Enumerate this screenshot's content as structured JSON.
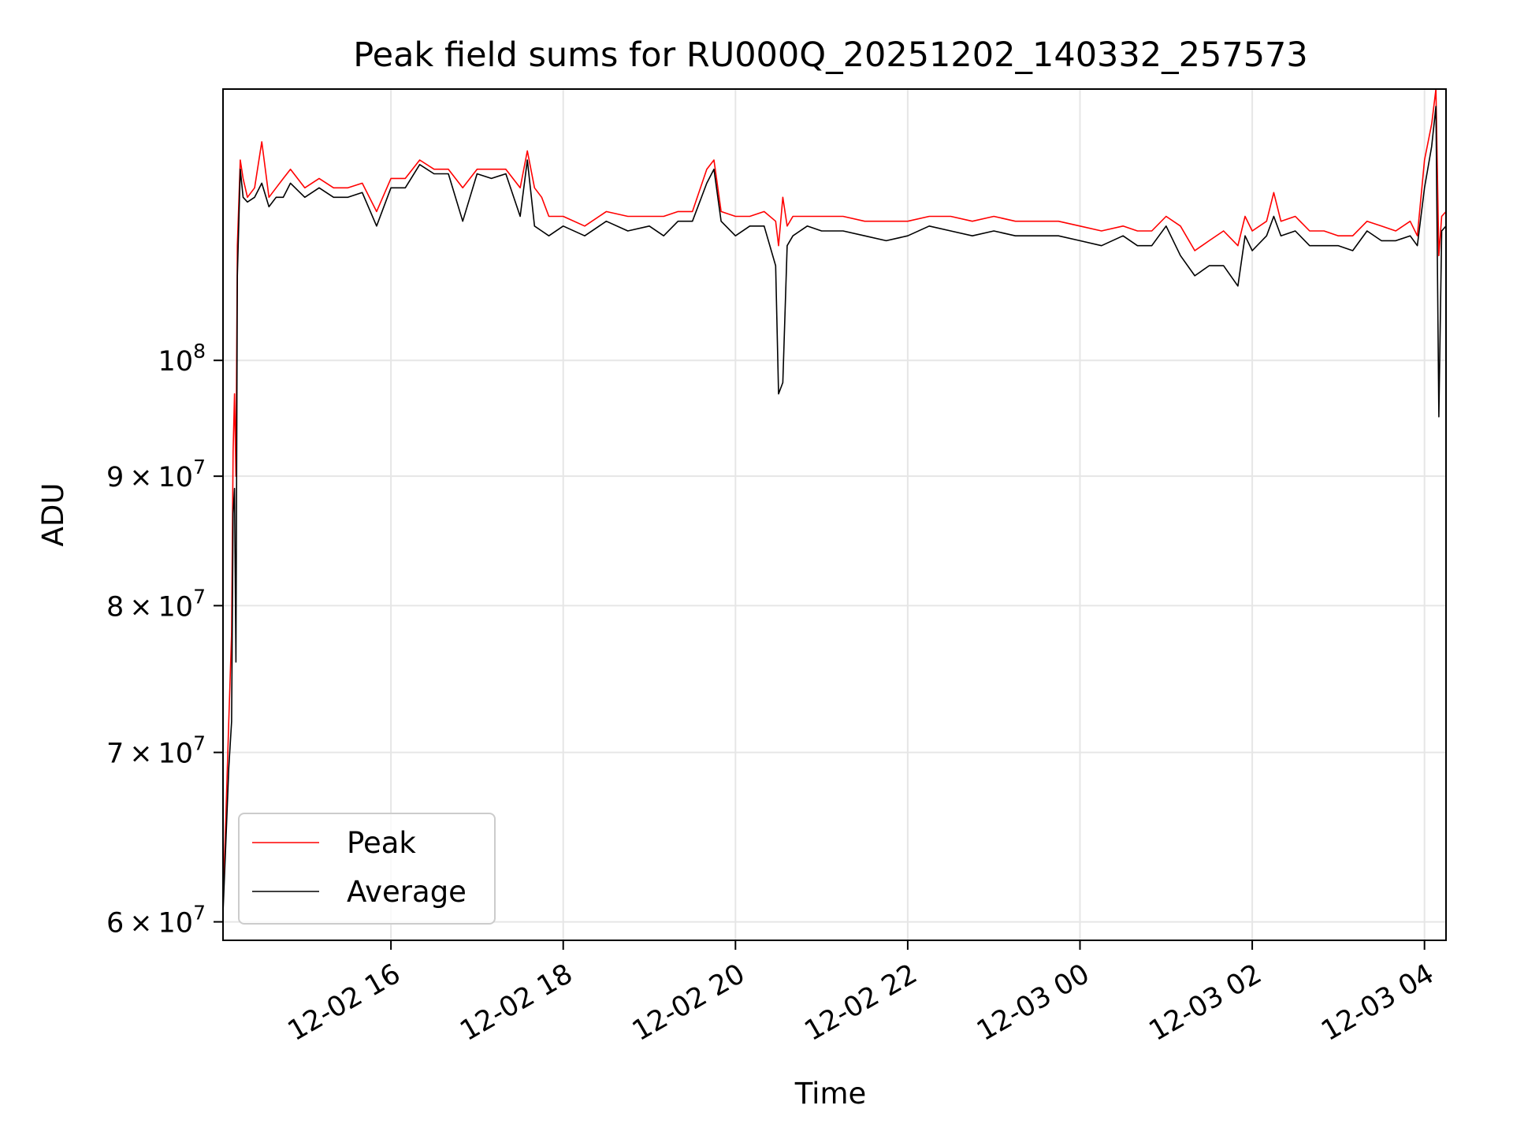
{
  "chart_data": {
    "type": "line",
    "title": "Peak field sums for RU000Q_20251202_140332_257573",
    "xlabel": "Time",
    "ylabel": "ADU",
    "yscale": "log",
    "grid": true,
    "legend_position": "lower-left",
    "xlim": [
      "2025-12-02 14:03",
      "2025-12-03 04:15"
    ],
    "ylim": [
      59000000,
      128000000
    ],
    "x_ticks": [
      {
        "value": "2025-12-02 16:00",
        "label": "12-02 16"
      },
      {
        "value": "2025-12-02 18:00",
        "label": "12-02 18"
      },
      {
        "value": "2025-12-02 20:00",
        "label": "12-02 20"
      },
      {
        "value": "2025-12-02 22:00",
        "label": "12-02 22"
      },
      {
        "value": "2025-12-03 00:00",
        "label": "12-03 00"
      },
      {
        "value": "2025-12-03 02:00",
        "label": "12-03 02"
      },
      {
        "value": "2025-12-03 04:00",
        "label": "12-03 04"
      }
    ],
    "y_ticks": [
      {
        "value": 60000000,
        "mantissa": "6",
        "times": "×",
        "base": "10",
        "exp": "7"
      },
      {
        "value": 70000000,
        "mantissa": "7",
        "times": "×",
        "base": "10",
        "exp": "7"
      },
      {
        "value": 80000000,
        "mantissa": "8",
        "times": "×",
        "base": "10",
        "exp": "7"
      },
      {
        "value": 90000000,
        "mantissa": "9",
        "times": "×",
        "base": "10",
        "exp": "7"
      },
      {
        "value": 100000000,
        "mantissa": "",
        "times": "",
        "base": "10",
        "exp": "8"
      }
    ],
    "series": [
      {
        "name": "Peak",
        "color": "#ff0000",
        "x": [
          "2025-12-02 14:03",
          "2025-12-02 14:05",
          "2025-12-02 14:07",
          "2025-12-02 14:09",
          "2025-12-02 14:10",
          "2025-12-02 14:11",
          "2025-12-02 14:12",
          "2025-12-02 14:13",
          "2025-12-02 14:15",
          "2025-12-02 14:17",
          "2025-12-02 14:20",
          "2025-12-02 14:25",
          "2025-12-02 14:30",
          "2025-12-02 14:35",
          "2025-12-02 14:40",
          "2025-12-02 14:45",
          "2025-12-02 14:50",
          "2025-12-02 15:00",
          "2025-12-02 15:10",
          "2025-12-02 15:20",
          "2025-12-02 15:30",
          "2025-12-02 15:40",
          "2025-12-02 15:50",
          "2025-12-02 16:00",
          "2025-12-02 16:10",
          "2025-12-02 16:20",
          "2025-12-02 16:30",
          "2025-12-02 16:40",
          "2025-12-02 16:50",
          "2025-12-02 17:00",
          "2025-12-02 17:10",
          "2025-12-02 17:20",
          "2025-12-02 17:30",
          "2025-12-02 17:35",
          "2025-12-02 17:40",
          "2025-12-02 17:45",
          "2025-12-02 17:50",
          "2025-12-02 18:00",
          "2025-12-02 18:15",
          "2025-12-02 18:30",
          "2025-12-02 18:45",
          "2025-12-02 19:00",
          "2025-12-02 19:10",
          "2025-12-02 19:20",
          "2025-12-02 19:30",
          "2025-12-02 19:40",
          "2025-12-02 19:45",
          "2025-12-02 19:50",
          "2025-12-02 20:00",
          "2025-12-02 20:10",
          "2025-12-02 20:20",
          "2025-12-02 20:28",
          "2025-12-02 20:30",
          "2025-12-02 20:33",
          "2025-12-02 20:36",
          "2025-12-02 20:40",
          "2025-12-02 20:50",
          "2025-12-02 21:00",
          "2025-12-02 21:15",
          "2025-12-02 21:30",
          "2025-12-02 21:45",
          "2025-12-02 22:00",
          "2025-12-02 22:15",
          "2025-12-02 22:30",
          "2025-12-02 22:45",
          "2025-12-02 23:00",
          "2025-12-02 23:15",
          "2025-12-02 23:30",
          "2025-12-02 23:45",
          "2025-12-03 00:00",
          "2025-12-03 00:15",
          "2025-12-03 00:30",
          "2025-12-03 00:40",
          "2025-12-03 00:50",
          "2025-12-03 01:00",
          "2025-12-03 01:10",
          "2025-12-03 01:20",
          "2025-12-03 01:30",
          "2025-12-03 01:40",
          "2025-12-03 01:50",
          "2025-12-03 01:55",
          "2025-12-03 02:00",
          "2025-12-03 02:10",
          "2025-12-03 02:15",
          "2025-12-03 02:20",
          "2025-12-03 02:30",
          "2025-12-03 02:40",
          "2025-12-03 02:50",
          "2025-12-03 03:00",
          "2025-12-03 03:10",
          "2025-12-03 03:20",
          "2025-12-03 03:30",
          "2025-12-03 03:40",
          "2025-12-03 03:50",
          "2025-12-03 03:55",
          "2025-12-03 04:00",
          "2025-12-03 04:05",
          "2025-12-03 04:08",
          "2025-12-03 04:10",
          "2025-12-03 04:12",
          "2025-12-03 04:15"
        ],
        "y": [
          61000000,
          66000000,
          72000000,
          78000000,
          92000000,
          97000000,
          90000000,
          111000000,
          120000000,
          118000000,
          116000000,
          117000000,
          122000000,
          116000000,
          117000000,
          118000000,
          119000000,
          117000000,
          118000000,
          117000000,
          117000000,
          117500000,
          114500000,
          118000000,
          118000000,
          120000000,
          119000000,
          119000000,
          117000000,
          119000000,
          119000000,
          119000000,
          117000000,
          121000000,
          117000000,
          116000000,
          114000000,
          114000000,
          113000000,
          114500000,
          114000000,
          114000000,
          114000000,
          114500000,
          114500000,
          119000000,
          120000000,
          114500000,
          114000000,
          114000000,
          114500000,
          113500000,
          111000000,
          116000000,
          113000000,
          114000000,
          114000000,
          114000000,
          114000000,
          113500000,
          113500000,
          113500000,
          114000000,
          114000000,
          113500000,
          114000000,
          113500000,
          113500000,
          113500000,
          113000000,
          112500000,
          113000000,
          112500000,
          112500000,
          114000000,
          113000000,
          110500000,
          111500000,
          112500000,
          111000000,
          114000000,
          112500000,
          113500000,
          116500000,
          113500000,
          114000000,
          112500000,
          112500000,
          112000000,
          112000000,
          113500000,
          113000000,
          112500000,
          113500000,
          112000000,
          120000000,
          124000000,
          128000000,
          110000000,
          114000000,
          114500000
        ]
      },
      {
        "name": "Average",
        "color": "#000000",
        "x": [
          "2025-12-02 14:03",
          "2025-12-02 14:05",
          "2025-12-02 14:07",
          "2025-12-02 14:09",
          "2025-12-02 14:10",
          "2025-12-02 14:11",
          "2025-12-02 14:12",
          "2025-12-02 14:13",
          "2025-12-02 14:15",
          "2025-12-02 14:17",
          "2025-12-02 14:20",
          "2025-12-02 14:25",
          "2025-12-02 14:30",
          "2025-12-02 14:35",
          "2025-12-02 14:40",
          "2025-12-02 14:45",
          "2025-12-02 14:50",
          "2025-12-02 15:00",
          "2025-12-02 15:10",
          "2025-12-02 15:20",
          "2025-12-02 15:30",
          "2025-12-02 15:40",
          "2025-12-02 15:50",
          "2025-12-02 16:00",
          "2025-12-02 16:10",
          "2025-12-02 16:20",
          "2025-12-02 16:30",
          "2025-12-02 16:40",
          "2025-12-02 16:50",
          "2025-12-02 17:00",
          "2025-12-02 17:10",
          "2025-12-02 17:20",
          "2025-12-02 17:30",
          "2025-12-02 17:35",
          "2025-12-02 17:40",
          "2025-12-02 17:45",
          "2025-12-02 17:50",
          "2025-12-02 18:00",
          "2025-12-02 18:15",
          "2025-12-02 18:30",
          "2025-12-02 18:45",
          "2025-12-02 19:00",
          "2025-12-02 19:10",
          "2025-12-02 19:20",
          "2025-12-02 19:30",
          "2025-12-02 19:40",
          "2025-12-02 19:45",
          "2025-12-02 19:50",
          "2025-12-02 20:00",
          "2025-12-02 20:10",
          "2025-12-02 20:20",
          "2025-12-02 20:28",
          "2025-12-02 20:30",
          "2025-12-02 20:33",
          "2025-12-02 20:36",
          "2025-12-02 20:40",
          "2025-12-02 20:50",
          "2025-12-02 21:00",
          "2025-12-02 21:15",
          "2025-12-02 21:30",
          "2025-12-02 21:45",
          "2025-12-02 22:00",
          "2025-12-02 22:15",
          "2025-12-02 22:30",
          "2025-12-02 22:45",
          "2025-12-02 23:00",
          "2025-12-02 23:15",
          "2025-12-02 23:30",
          "2025-12-02 23:45",
          "2025-12-03 00:00",
          "2025-12-03 00:15",
          "2025-12-03 00:30",
          "2025-12-03 00:40",
          "2025-12-03 00:50",
          "2025-12-03 01:00",
          "2025-12-03 01:10",
          "2025-12-03 01:20",
          "2025-12-03 01:30",
          "2025-12-03 01:40",
          "2025-12-03 01:50",
          "2025-12-03 01:55",
          "2025-12-03 02:00",
          "2025-12-03 02:10",
          "2025-12-03 02:15",
          "2025-12-03 02:20",
          "2025-12-03 02:30",
          "2025-12-03 02:40",
          "2025-12-03 02:50",
          "2025-12-03 03:00",
          "2025-12-03 03:10",
          "2025-12-03 03:20",
          "2025-12-03 03:30",
          "2025-12-03 03:40",
          "2025-12-03 03:50",
          "2025-12-03 03:55",
          "2025-12-03 04:00",
          "2025-12-03 04:05",
          "2025-12-03 04:08",
          "2025-12-03 04:10",
          "2025-12-03 04:12",
          "2025-12-03 04:15"
        ],
        "y": [
          60500000,
          64500000,
          69000000,
          72000000,
          87000000,
          89000000,
          76000000,
          108000000,
          119000000,
          116000000,
          115500000,
          116000000,
          117500000,
          115000000,
          116000000,
          116000000,
          117500000,
          116000000,
          117000000,
          116000000,
          116000000,
          116500000,
          113000000,
          117000000,
          117000000,
          119500000,
          118500000,
          118500000,
          113500000,
          118500000,
          118000000,
          118500000,
          114000000,
          120000000,
          113000000,
          112500000,
          112000000,
          113000000,
          112000000,
          113500000,
          112500000,
          113000000,
          112000000,
          113500000,
          113500000,
          117500000,
          119000000,
          113500000,
          112000000,
          113000000,
          113000000,
          109000000,
          97000000,
          98000000,
          111000000,
          112000000,
          113000000,
          112500000,
          112500000,
          112000000,
          111500000,
          112000000,
          113000000,
          112500000,
          112000000,
          112500000,
          112000000,
          112000000,
          112000000,
          111500000,
          111000000,
          112000000,
          111000000,
          111000000,
          113000000,
          110000000,
          108000000,
          109000000,
          109000000,
          107000000,
          112000000,
          110500000,
          112000000,
          114000000,
          112000000,
          112500000,
          111000000,
          111000000,
          111000000,
          110500000,
          112500000,
          111500000,
          111500000,
          112000000,
          111000000,
          117000000,
          121500000,
          126000000,
          95000000,
          112500000,
          113000000
        ]
      }
    ]
  }
}
